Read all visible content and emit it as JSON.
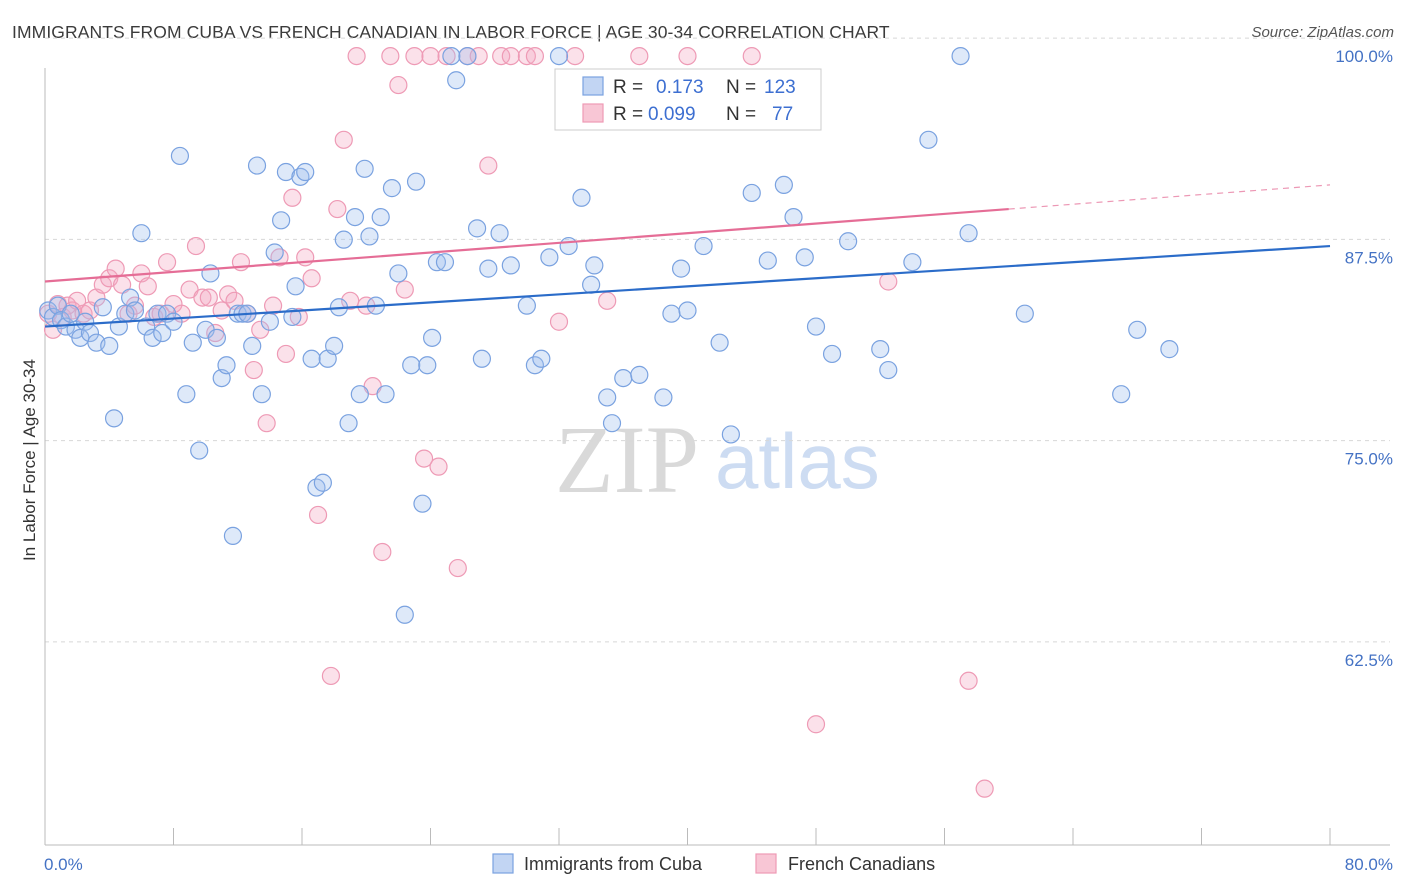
{
  "chart_data": {
    "type": "scatter",
    "title": "IMMIGRANTS FROM CUBA VS FRENCH CANADIAN IN LABOR FORCE | AGE 30-34 CORRELATION CHART",
    "source": "Source: ZipAtlas.com",
    "ylabel": "In Labor Force | Age 30-34",
    "xlim": [
      0,
      80
    ],
    "ylim": [
      51,
      101
    ],
    "x_tick_labels": [
      "0.0%",
      "80.0%"
    ],
    "y_ticks": [
      62.5,
      75.0,
      87.5,
      100.0
    ],
    "y_tick_labels": [
      "62.5%",
      "75.0%",
      "87.5%",
      "100.0%"
    ],
    "grid": "horizontal-dashed",
    "watermark": {
      "zip": "ZIP",
      "atlas": "atlas"
    },
    "stats_box": {
      "r_label": "R =",
      "n_label": "N =",
      "rows": [
        {
          "r": "0.173",
          "n": "123"
        },
        {
          "r": "0.099",
          "n": "77"
        }
      ]
    },
    "legend": [
      "Immigrants from Cuba",
      "French Canadians"
    ],
    "colors": {
      "cuba": "#6f9fe0",
      "cuba_line": "#2b6cc9",
      "french": "#f0a0bb",
      "french_line": "#e56d96"
    },
    "series": [
      {
        "name": "Immigrants from Cuba",
        "trend": {
          "x": [
            0,
            80
          ],
          "y": [
            83.2,
            88.2
          ],
          "dashed_from": null
        },
        "points": [
          [
            0.2,
            84.2
          ],
          [
            0.5,
            83.8
          ],
          [
            0.8,
            84.5
          ],
          [
            1.0,
            83.6
          ],
          [
            1.3,
            83.2
          ],
          [
            1.6,
            84.0
          ],
          [
            1.9,
            83.0
          ],
          [
            2.2,
            82.5
          ],
          [
            2.5,
            83.5
          ],
          [
            2.8,
            82.8
          ],
          [
            3.2,
            82.2
          ],
          [
            3.6,
            84.4
          ],
          [
            4.0,
            82.0
          ],
          [
            4.3,
            77.5
          ],
          [
            4.6,
            83.2
          ],
          [
            5.0,
            84.0
          ],
          [
            5.3,
            85.0
          ],
          [
            5.6,
            84.2
          ],
          [
            6.0,
            89.0
          ],
          [
            6.3,
            83.2
          ],
          [
            6.7,
            82.5
          ],
          [
            7.0,
            84.0
          ],
          [
            7.3,
            82.8
          ],
          [
            7.6,
            84.0
          ],
          [
            8.0,
            83.5
          ],
          [
            8.4,
            93.8
          ],
          [
            8.8,
            79.0
          ],
          [
            9.2,
            82.2
          ],
          [
            9.6,
            75.5
          ],
          [
            10.0,
            83.0
          ],
          [
            10.3,
            86.5
          ],
          [
            10.7,
            82.5
          ],
          [
            11.0,
            80.0
          ],
          [
            11.3,
            80.8
          ],
          [
            11.7,
            70.2
          ],
          [
            12.0,
            84.0
          ],
          [
            12.3,
            84.0
          ],
          [
            12.6,
            84.0
          ],
          [
            12.9,
            82.0
          ],
          [
            13.2,
            93.2
          ],
          [
            13.5,
            79.0
          ],
          [
            14.0,
            83.5
          ],
          [
            14.3,
            87.8
          ],
          [
            14.7,
            89.8
          ],
          [
            15.0,
            92.8
          ],
          [
            15.4,
            83.8
          ],
          [
            15.6,
            85.7
          ],
          [
            15.9,
            92.5
          ],
          [
            16.2,
            92.8
          ],
          [
            16.6,
            81.2
          ],
          [
            16.9,
            73.2
          ],
          [
            17.3,
            73.5
          ],
          [
            17.6,
            81.2
          ],
          [
            18.0,
            82.0
          ],
          [
            18.3,
            84.4
          ],
          [
            18.6,
            88.6
          ],
          [
            18.9,
            77.2
          ],
          [
            19.3,
            90.0
          ],
          [
            19.6,
            79.0
          ],
          [
            19.9,
            93.0
          ],
          [
            20.2,
            88.8
          ],
          [
            20.6,
            84.5
          ],
          [
            20.9,
            90.0
          ],
          [
            21.2,
            79.0
          ],
          [
            21.6,
            91.8
          ],
          [
            22.0,
            86.5
          ],
          [
            22.4,
            65.3
          ],
          [
            22.8,
            80.8
          ],
          [
            23.1,
            92.2
          ],
          [
            23.5,
            72.2
          ],
          [
            23.8,
            80.8
          ],
          [
            24.1,
            82.5
          ],
          [
            24.4,
            87.2
          ],
          [
            24.9,
            87.2
          ],
          [
            25.3,
            100.0
          ],
          [
            25.6,
            98.5
          ],
          [
            26.3,
            100.0
          ],
          [
            26.9,
            89.3
          ],
          [
            27.2,
            81.2
          ],
          [
            27.6,
            86.8
          ],
          [
            28.3,
            89.0
          ],
          [
            29.0,
            87.0
          ],
          [
            30.0,
            84.5
          ],
          [
            30.5,
            80.8
          ],
          [
            30.9,
            81.2
          ],
          [
            31.4,
            87.5
          ],
          [
            32.0,
            100.0
          ],
          [
            32.6,
            88.2
          ],
          [
            33.4,
            91.2
          ],
          [
            34.0,
            85.8
          ],
          [
            34.2,
            87.0
          ],
          [
            35.0,
            78.8
          ],
          [
            35.3,
            77.2
          ],
          [
            36.0,
            80.0
          ],
          [
            37.0,
            80.2
          ],
          [
            38.5,
            78.8
          ],
          [
            39.0,
            84.0
          ],
          [
            39.6,
            86.8
          ],
          [
            40.0,
            84.2
          ],
          [
            41.0,
            88.2
          ],
          [
            42.0,
            82.2
          ],
          [
            42.7,
            76.5
          ],
          [
            44.0,
            91.5
          ],
          [
            45.0,
            87.3
          ],
          [
            46.0,
            92.0
          ],
          [
            46.6,
            90.0
          ],
          [
            47.3,
            87.5
          ],
          [
            48.0,
            83.2
          ],
          [
            49.0,
            81.5
          ],
          [
            50.0,
            88.5
          ],
          [
            52.0,
            81.8
          ],
          [
            52.5,
            80.5
          ],
          [
            54.0,
            87.2
          ],
          [
            55.0,
            94.8
          ],
          [
            57.0,
            100.0
          ],
          [
            57.5,
            89.0
          ],
          [
            61.0,
            84.0
          ],
          [
            67.0,
            79.0
          ],
          [
            68.0,
            83.0
          ],
          [
            70.0,
            81.8
          ]
        ]
      },
      {
        "name": "French Canadians",
        "trend": {
          "x": [
            0,
            80
          ],
          "y": [
            86.0,
            92.0
          ],
          "dashed_from": 60
        },
        "points": [
          [
            0.2,
            84.0
          ],
          [
            0.5,
            83.0
          ],
          [
            0.8,
            84.6
          ],
          [
            1.1,
            83.8
          ],
          [
            1.4,
            84.5
          ],
          [
            1.7,
            84.2
          ],
          [
            2.0,
            84.8
          ],
          [
            2.4,
            84.0
          ],
          [
            2.8,
            84.2
          ],
          [
            3.2,
            85.0
          ],
          [
            3.6,
            85.8
          ],
          [
            4.0,
            86.2
          ],
          [
            4.4,
            86.8
          ],
          [
            4.8,
            85.8
          ],
          [
            5.2,
            84.0
          ],
          [
            5.6,
            84.5
          ],
          [
            6.0,
            86.5
          ],
          [
            6.4,
            85.7
          ],
          [
            6.8,
            83.8
          ],
          [
            7.2,
            84.0
          ],
          [
            7.6,
            87.2
          ],
          [
            8.0,
            84.6
          ],
          [
            8.5,
            84.0
          ],
          [
            9.0,
            85.5
          ],
          [
            9.4,
            88.2
          ],
          [
            9.8,
            85.0
          ],
          [
            10.2,
            85.0
          ],
          [
            10.6,
            82.8
          ],
          [
            11.0,
            84.2
          ],
          [
            11.4,
            85.2
          ],
          [
            11.8,
            84.8
          ],
          [
            12.2,
            87.2
          ],
          [
            12.6,
            84.0
          ],
          [
            13.0,
            80.5
          ],
          [
            13.4,
            83.0
          ],
          [
            13.8,
            77.2
          ],
          [
            14.2,
            84.5
          ],
          [
            14.6,
            87.5
          ],
          [
            15.0,
            81.5
          ],
          [
            15.4,
            91.2
          ],
          [
            15.8,
            83.8
          ],
          [
            16.2,
            87.5
          ],
          [
            16.6,
            86.2
          ],
          [
            17.0,
            71.5
          ],
          [
            17.8,
            61.5
          ],
          [
            18.2,
            90.5
          ],
          [
            18.6,
            94.8
          ],
          [
            19.0,
            84.8
          ],
          [
            19.4,
            100.0
          ],
          [
            20.0,
            84.5
          ],
          [
            20.4,
            79.5
          ],
          [
            21.0,
            69.2
          ],
          [
            21.5,
            100.0
          ],
          [
            22.0,
            98.2
          ],
          [
            22.4,
            85.5
          ],
          [
            23.0,
            100.0
          ],
          [
            23.6,
            75.0
          ],
          [
            24.0,
            100.0
          ],
          [
            24.5,
            74.5
          ],
          [
            25.0,
            100.0
          ],
          [
            25.7,
            68.2
          ],
          [
            26.3,
            100.0
          ],
          [
            27.0,
            100.0
          ],
          [
            27.6,
            93.2
          ],
          [
            28.4,
            100.0
          ],
          [
            29.0,
            100.0
          ],
          [
            30.0,
            100.0
          ],
          [
            30.5,
            100.0
          ],
          [
            32.0,
            83.5
          ],
          [
            33.0,
            100.0
          ],
          [
            35.0,
            84.8
          ],
          [
            37.0,
            100.0
          ],
          [
            40.0,
            100.0
          ],
          [
            44.0,
            100.0
          ],
          [
            48.0,
            58.5
          ],
          [
            52.5,
            86.0
          ],
          [
            57.5,
            61.2
          ],
          [
            58.5,
            54.5
          ]
        ]
      }
    ]
  }
}
